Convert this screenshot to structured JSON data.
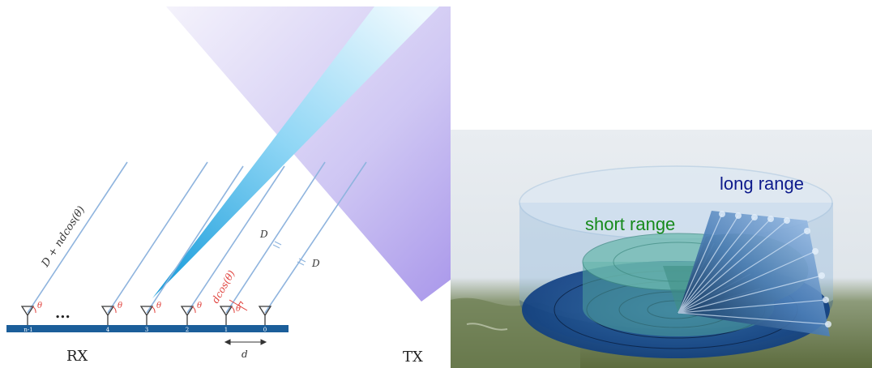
{
  "left_diagram": {
    "rx_label": "RX",
    "tx_label": "TX",
    "ellipsis": "...",
    "path_label": "D + ndcos(θ)",
    "d_label": "d",
    "D_label_1": "D",
    "D_label_2": "D",
    "dcos_label": "dcos(θ)",
    "theta": "θ",
    "antenna_indices": [
      "n-1",
      "4",
      "3",
      "2",
      "1",
      "0"
    ],
    "colors": {
      "baseline": "#1b5e9a",
      "ray": "#8fb4de",
      "beam": "#27a7e0",
      "tx_cone": "#a79be8",
      "annotation": "#e0413c"
    }
  },
  "right_diagram": {
    "long_range_label": "long range",
    "short_range_label": "short range",
    "colors": {
      "long_range_text": "#0d1a8c",
      "short_range_text": "#178a1c"
    }
  }
}
